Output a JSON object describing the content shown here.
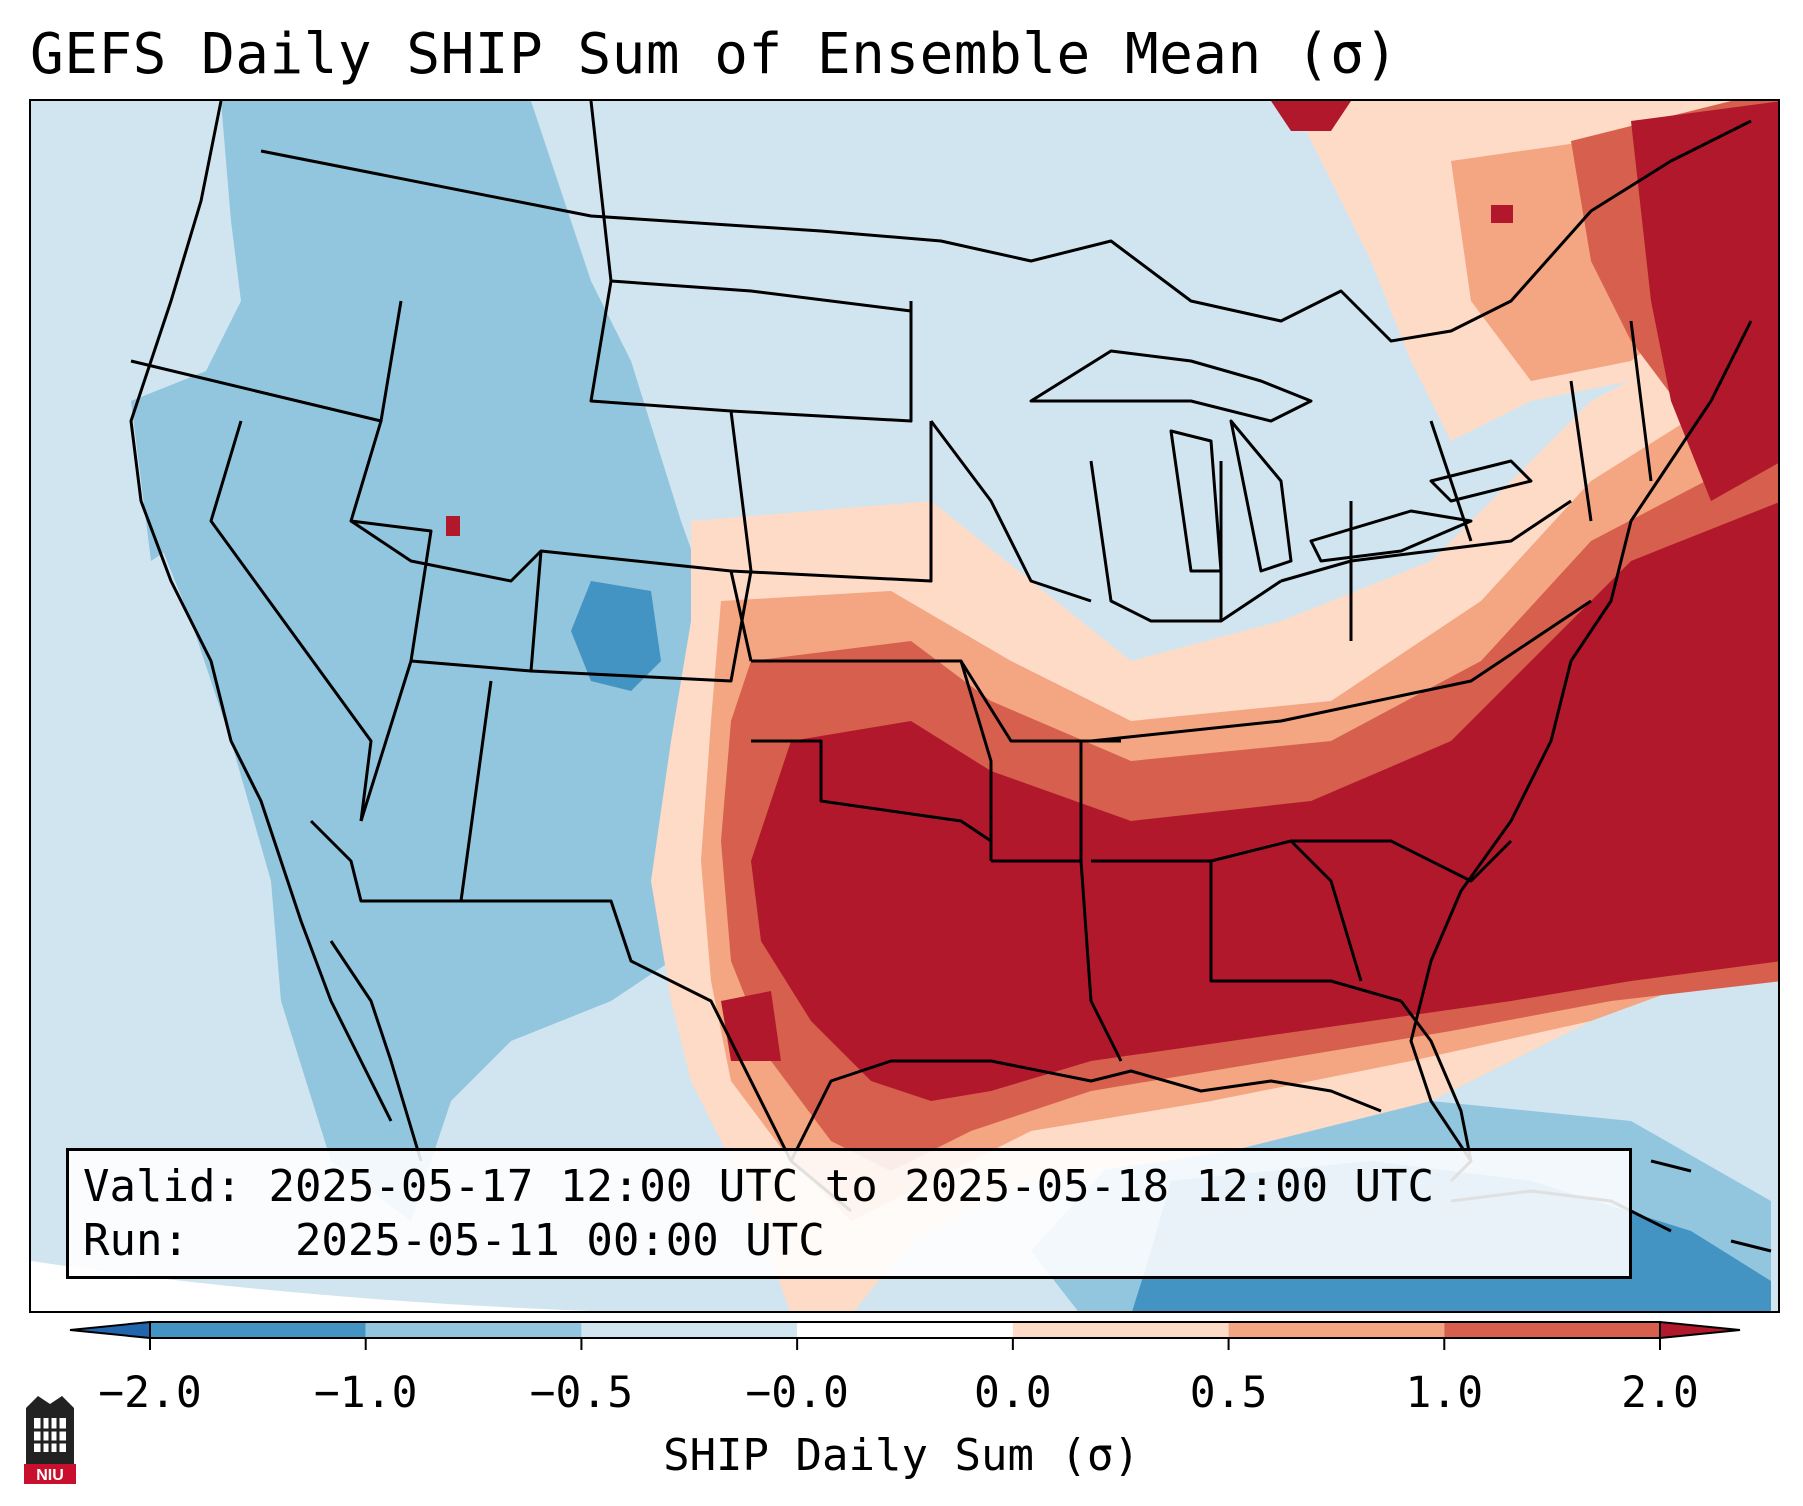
{
  "title": "GEFS Daily SHIP Sum of Ensemble Mean (σ)",
  "info_box": {
    "valid_label": "Valid:",
    "valid_value": "2025-05-17 12:00 UTC to 2025-05-18 12:00 UTC",
    "run_label": "Run:",
    "run_value": "2025-05-11 00:00 UTC"
  },
  "colorbar": {
    "label": "SHIP Daily Sum (σ)",
    "ticks": [
      "−2.0",
      "−1.0",
      "−0.5",
      "−0.0",
      "0.0",
      "0.5",
      "1.0",
      "2.0"
    ],
    "colors": [
      "#2166ac",
      "#4393c3",
      "#92c5de",
      "#d1e5f0",
      "#ffffff",
      "#fddbc7",
      "#f4a582",
      "#d6604d",
      "#b2182b"
    ],
    "extend_low_color": "#2166ac",
    "extend_high_color": "#b2182b"
  },
  "map": {
    "projection": "lambert-conformal",
    "region": "Continental United States"
  },
  "logo": {
    "text": "NIU",
    "accent_color": "#c8102e"
  }
}
